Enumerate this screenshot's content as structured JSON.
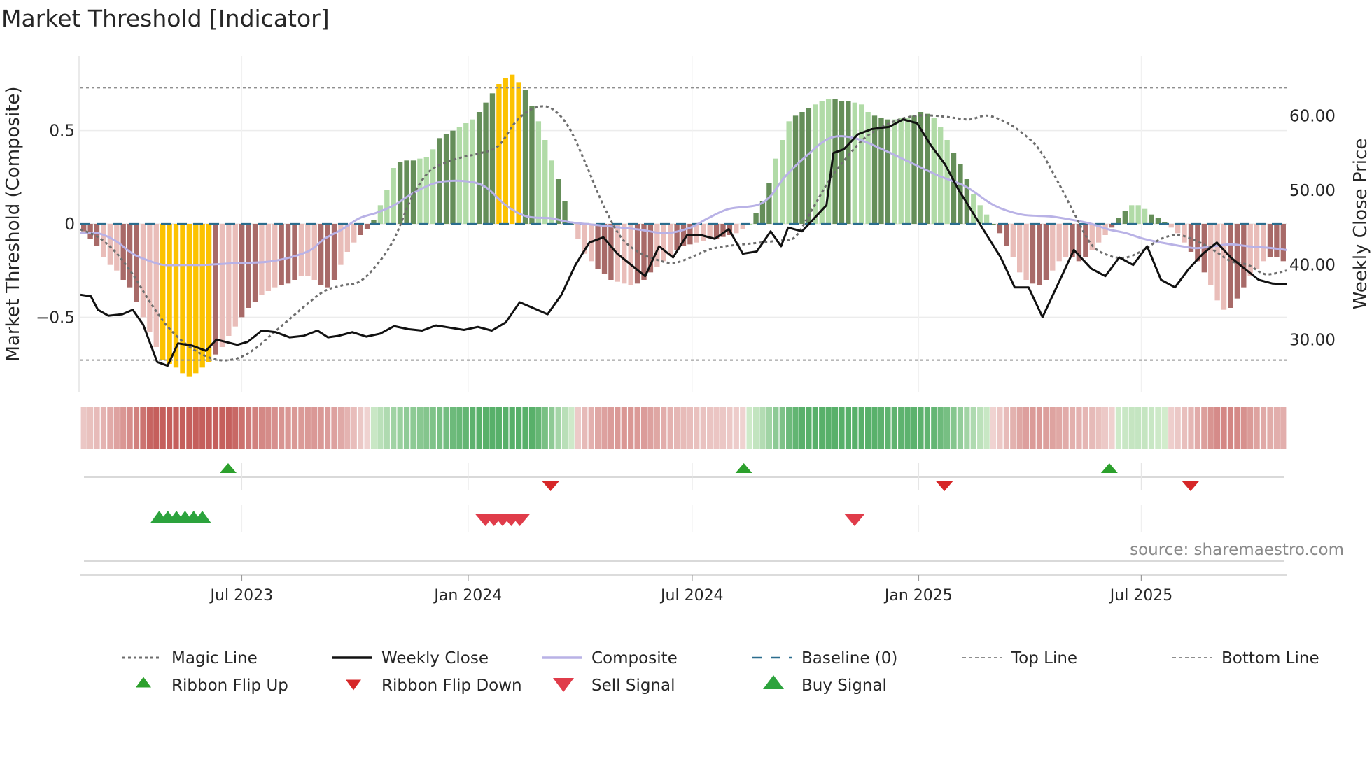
{
  "chart_data": {
    "type": "bar",
    "title": "Market Threshold [Indicator]",
    "ylabel_left": "Market Threshold (Composite)",
    "ylabel_right": "Weekly Close Price",
    "source": "source: sharemaestro.com",
    "left_axis": {
      "ylim": [
        -0.9,
        0.9
      ],
      "ticks": [
        0.5,
        0,
        -0.5
      ],
      "tick_labels": [
        "0.5",
        "0",
        "−0.5"
      ]
    },
    "right_axis": {
      "ylim": [
        23,
        68
      ],
      "ticks": [
        60,
        50,
        40,
        30
      ],
      "tick_labels": [
        "60.00",
        "50.00",
        "40.00",
        "30.00"
      ]
    },
    "x_axis": {
      "start": "2023-02-20",
      "end": "2025-10-27",
      "ticks": [
        {
          "date": "2023-07-01",
          "label": "Jul 2023"
        },
        {
          "date": "2024-01-01",
          "label": "Jan 2024"
        },
        {
          "date": "2024-07-01",
          "label": "Jul 2024"
        },
        {
          "date": "2025-01-01",
          "label": "Jan 2025"
        },
        {
          "date": "2025-07-01",
          "label": "Jul 2025"
        }
      ]
    },
    "top_line": 0.73,
    "bottom_line": -0.73,
    "composite_keypoints": [
      [
        0,
        -0.05
      ],
      [
        5,
        -0.05
      ],
      [
        10,
        -0.09
      ],
      [
        15,
        -0.16
      ],
      [
        20,
        -0.2
      ],
      [
        24,
        -0.22
      ],
      [
        30,
        -0.22
      ],
      [
        35,
        -0.22
      ],
      [
        45,
        -0.21
      ],
      [
        55,
        -0.2
      ],
      [
        65,
        -0.15
      ],
      [
        70,
        -0.08
      ],
      [
        75,
        -0.03
      ],
      [
        80,
        0.03
      ],
      [
        85,
        0.06
      ],
      [
        90,
        0.1
      ],
      [
        95,
        0.16
      ],
      [
        102,
        0.22
      ],
      [
        110,
        0.23
      ],
      [
        116,
        0.2
      ],
      [
        122,
        0.1
      ],
      [
        128,
        0.04
      ],
      [
        135,
        0.03
      ],
      [
        140,
        0.01
      ],
      [
        150,
        -0.01
      ],
      [
        160,
        -0.03
      ],
      [
        168,
        -0.05
      ],
      [
        175,
        -0.02
      ],
      [
        180,
        0.03
      ],
      [
        186,
        0.08
      ],
      [
        194,
        0.1
      ],
      [
        198,
        0.15
      ],
      [
        202,
        0.25
      ],
      [
        208,
        0.36
      ],
      [
        215,
        0.46
      ],
      [
        222,
        0.46
      ],
      [
        230,
        0.4
      ],
      [
        238,
        0.33
      ],
      [
        246,
        0.26
      ],
      [
        254,
        0.2
      ],
      [
        262,
        0.1
      ],
      [
        270,
        0.05
      ],
      [
        278,
        0.04
      ],
      [
        285,
        0.02
      ],
      [
        290,
        0.0
      ],
      [
        295,
        -0.03
      ],
      [
        300,
        -0.05
      ],
      [
        305,
        -0.08
      ],
      [
        310,
        -0.1
      ],
      [
        316,
        -0.12
      ],
      [
        320,
        -0.13
      ],
      [
        325,
        -0.12
      ],
      [
        330,
        -0.11
      ],
      [
        335,
        -0.12
      ],
      [
        342,
        -0.13
      ],
      [
        346,
        -0.14
      ]
    ],
    "magic_keypoints": [
      [
        0,
        -0.03
      ],
      [
        5,
        -0.07
      ],
      [
        10,
        -0.15
      ],
      [
        15,
        -0.27
      ],
      [
        20,
        -0.42
      ],
      [
        25,
        -0.55
      ],
      [
        30,
        -0.64
      ],
      [
        35,
        -0.7
      ],
      [
        40,
        -0.73
      ],
      [
        45,
        -0.72
      ],
      [
        50,
        -0.67
      ],
      [
        55,
        -0.59
      ],
      [
        60,
        -0.51
      ],
      [
        65,
        -0.43
      ],
      [
        70,
        -0.36
      ],
      [
        75,
        -0.33
      ],
      [
        80,
        -0.31
      ],
      [
        85,
        -0.22
      ],
      [
        90,
        -0.08
      ],
      [
        95,
        0.14
      ],
      [
        100,
        0.28
      ],
      [
        105,
        0.33
      ],
      [
        110,
        0.36
      ],
      [
        115,
        0.38
      ],
      [
        120,
        0.42
      ],
      [
        125,
        0.55
      ],
      [
        130,
        0.62
      ],
      [
        135,
        0.62
      ],
      [
        140,
        0.52
      ],
      [
        145,
        0.32
      ],
      [
        150,
        0.1
      ],
      [
        155,
        -0.07
      ],
      [
        160,
        -0.15
      ],
      [
        165,
        -0.19
      ],
      [
        170,
        -0.21
      ],
      [
        175,
        -0.18
      ],
      [
        180,
        -0.14
      ],
      [
        185,
        -0.12
      ],
      [
        190,
        -0.11
      ],
      [
        195,
        -0.1
      ],
      [
        200,
        -0.09
      ],
      [
        205,
        -0.07
      ],
      [
        210,
        0.08
      ],
      [
        215,
        0.24
      ],
      [
        220,
        0.36
      ],
      [
        225,
        0.46
      ],
      [
        230,
        0.52
      ],
      [
        235,
        0.56
      ],
      [
        240,
        0.58
      ],
      [
        245,
        0.58
      ],
      [
        250,
        0.57
      ],
      [
        255,
        0.56
      ],
      [
        260,
        0.58
      ],
      [
        265,
        0.55
      ],
      [
        270,
        0.49
      ],
      [
        275,
        0.4
      ],
      [
        280,
        0.24
      ],
      [
        285,
        0.06
      ],
      [
        290,
        -0.11
      ],
      [
        295,
        -0.17
      ],
      [
        300,
        -0.18
      ],
      [
        305,
        -0.14
      ],
      [
        310,
        -0.08
      ],
      [
        315,
        -0.06
      ],
      [
        320,
        -0.09
      ],
      [
        325,
        -0.14
      ],
      [
        330,
        -0.2
      ],
      [
        335,
        -0.22
      ],
      [
        340,
        -0.27
      ],
      [
        346,
        -0.25
      ]
    ],
    "weekly_close_keypoints": [
      [
        0,
        36
      ],
      [
        3,
        35.8
      ],
      [
        5,
        34
      ],
      [
        8,
        33.2
      ],
      [
        12,
        33.4
      ],
      [
        15,
        34
      ],
      [
        18,
        32
      ],
      [
        22,
        27
      ],
      [
        25,
        26.5
      ],
      [
        28,
        29.5
      ],
      [
        32,
        29.2
      ],
      [
        36,
        28.5
      ],
      [
        39,
        30
      ],
      [
        45,
        29.3
      ],
      [
        48,
        29.7
      ],
      [
        52,
        31.2
      ],
      [
        56,
        31
      ],
      [
        60,
        30.3
      ],
      [
        64,
        30.5
      ],
      [
        68,
        31.2
      ],
      [
        71,
        30.3
      ],
      [
        74,
        30.5
      ],
      [
        78,
        31
      ],
      [
        82,
        30.4
      ],
      [
        86,
        30.8
      ],
      [
        90,
        31.8
      ],
      [
        94,
        31.4
      ],
      [
        98,
        31.2
      ],
      [
        102,
        31.9
      ],
      [
        106,
        31.6
      ],
      [
        110,
        31.3
      ],
      [
        114,
        31.7
      ],
      [
        118,
        31.2
      ],
      [
        122,
        32.3
      ],
      [
        126,
        35
      ],
      [
        130,
        34.2
      ],
      [
        134,
        33.4
      ],
      [
        138,
        36
      ],
      [
        142,
        40
      ],
      [
        146,
        43
      ],
      [
        150,
        43.7
      ],
      [
        154,
        41.5
      ],
      [
        158,
        40
      ],
      [
        162,
        38.5
      ],
      [
        166,
        42.5
      ],
      [
        170,
        41
      ],
      [
        174,
        44
      ],
      [
        178,
        44
      ],
      [
        182,
        43.5
      ],
      [
        186,
        44.8
      ],
      [
        190,
        41.5
      ],
      [
        194,
        41.8
      ],
      [
        198,
        44.5
      ],
      [
        201,
        42.5
      ],
      [
        203,
        45
      ],
      [
        207,
        44.5
      ],
      [
        210,
        46
      ],
      [
        214,
        48
      ],
      [
        216,
        55
      ],
      [
        219,
        55.5
      ],
      [
        223,
        57.5
      ],
      [
        227,
        58.2
      ],
      [
        232,
        58.5
      ],
      [
        236,
        59.5
      ],
      [
        240,
        59
      ],
      [
        244,
        56
      ],
      [
        248,
        53.5
      ],
      [
        252,
        50
      ],
      [
        256,
        47
      ],
      [
        260,
        44
      ],
      [
        264,
        41
      ],
      [
        268,
        37
      ],
      [
        272,
        37
      ],
      [
        276,
        33
      ],
      [
        281,
        38
      ],
      [
        285,
        42
      ],
      [
        290,
        39.5
      ],
      [
        294,
        38.5
      ],
      [
        298,
        41
      ],
      [
        302,
        40
      ],
      [
        306,
        42.5
      ],
      [
        310,
        38
      ],
      [
        314,
        37
      ],
      [
        318,
        39.5
      ],
      [
        322,
        41.5
      ],
      [
        326,
        43
      ],
      [
        330,
        41
      ],
      [
        334,
        39.5
      ],
      [
        338,
        38
      ],
      [
        342,
        37.5
      ],
      [
        346,
        37.4
      ]
    ],
    "bar_heights_by_category": [
      -0.04,
      -0.08,
      -0.12,
      -0.18,
      -0.22,
      -0.25,
      -0.3,
      -0.34,
      -0.42,
      -0.5,
      -0.58,
      -0.66,
      -0.73,
      -0.75,
      -0.77,
      -0.8,
      -0.82,
      -0.8,
      -0.77,
      -0.74,
      -0.7,
      -0.66,
      -0.6,
      -0.55,
      -0.5,
      -0.45,
      -0.42,
      -0.38,
      -0.36,
      -0.34,
      -0.33,
      -0.32,
      -0.3,
      -0.28,
      -0.28,
      -0.3,
      -0.33,
      -0.34,
      -0.3,
      -0.22,
      -0.15,
      -0.1,
      -0.06,
      -0.03,
      0.02,
      0.1,
      0.18,
      0.3,
      0.33,
      0.34,
      0.34,
      0.35,
      0.36,
      0.4,
      0.46,
      0.48,
      0.5,
      0.52,
      0.54,
      0.56,
      0.6,
      0.65,
      0.7,
      0.75,
      0.78,
      0.8,
      0.76,
      0.72,
      0.63,
      0.55,
      0.45,
      0.34,
      0.24,
      0.12,
      0.0,
      -0.08,
      -0.16,
      -0.2,
      -0.24,
      -0.27,
      -0.3,
      -0.31,
      -0.32,
      -0.33,
      -0.32,
      -0.3,
      -0.26,
      -0.23,
      -0.2,
      -0.17,
      -0.14,
      -0.12,
      -0.11,
      -0.1,
      -0.09,
      -0.08,
      -0.08,
      -0.07,
      -0.06,
      -0.05,
      -0.03,
      0.0,
      0.06,
      0.12,
      0.22,
      0.35,
      0.45,
      0.55,
      0.58,
      0.6,
      0.62,
      0.64,
      0.66,
      0.67,
      0.67,
      0.66,
      0.66,
      0.65,
      0.64,
      0.6,
      0.58,
      0.57,
      0.56,
      0.56,
      0.57,
      0.57,
      0.58,
      0.6,
      0.59,
      0.57,
      0.52,
      0.45,
      0.38,
      0.32,
      0.24,
      0.16,
      0.1,
      0.05,
      0.0,
      -0.05,
      -0.12,
      -0.18,
      -0.26,
      -0.3,
      -0.32,
      -0.33,
      -0.3,
      -0.25,
      -0.2,
      -0.18,
      -0.18,
      -0.2,
      -0.18,
      -0.14,
      -0.1,
      -0.06,
      -0.02,
      0.03,
      0.07,
      0.1,
      0.1,
      0.08,
      0.05,
      0.03,
      0.01,
      -0.02,
      -0.05,
      -0.1,
      -0.15,
      -0.2,
      -0.26,
      -0.33,
      -0.41,
      -0.46,
      -0.45,
      -0.4,
      -0.34,
      -0.28,
      -0.24,
      -0.2,
      -0.18,
      -0.18,
      -0.2
    ]
  },
  "legend": [
    {
      "label": "Magic Line",
      "symbol": "dotted-line-icon",
      "color": "#6e6e6e"
    },
    {
      "label": "Weekly Close",
      "symbol": "solid-line-icon",
      "color": "#111111"
    },
    {
      "label": "Composite",
      "symbol": "solid-line-icon",
      "color": "#b9b2e6"
    },
    {
      "label": "Baseline (0)",
      "symbol": "dashed-line-icon",
      "color": "#2b6d8e"
    },
    {
      "label": "Top Line",
      "symbol": "dashed-line-icon",
      "color": "#8f8f8f"
    },
    {
      "label": "Bottom Line",
      "symbol": "dashed-line-icon",
      "color": "#8f8f8f"
    },
    {
      "label": "Ribbon Flip Up",
      "symbol": "triangle-up-icon",
      "color": "#2ca02c"
    },
    {
      "label": "Ribbon Flip Down",
      "symbol": "triangle-down-icon",
      "color": "#d62728"
    },
    {
      "label": "Sell Signal",
      "symbol": "triangle-down-icon",
      "color": "#e03c4a"
    },
    {
      "label": "Buy Signal",
      "symbol": "triangle-up-icon",
      "color": "#2ca33d"
    }
  ],
  "flip_up_dates": [
    "2023-06-20",
    "2024-08-12",
    "2025-06-05"
  ],
  "flip_down_dates": [
    "2024-03-08",
    "2025-01-22",
    "2025-08-10"
  ],
  "buy_signal_dates": [
    "2023-04-25",
    "2023-05-02",
    "2023-05-09",
    "2023-05-16",
    "2023-05-23",
    "2023-05-30"
  ],
  "sell_signal_dates": [
    "2024-01-15",
    "2024-01-22",
    "2024-01-29",
    "2024-02-05",
    "2024-02-12",
    "2024-11-10"
  ],
  "colors": {
    "bar_neg_strong": "#a86a68",
    "bar_neg_weak": "#e9bdb9",
    "bar_pos_strong": "#658e59",
    "bar_pos_weak": "#b1dba7",
    "bar_extreme": "#fcc200",
    "ribbon_red_strong": "#c55f5c",
    "ribbon_red_weak": "#f0d4d2",
    "ribbon_green_strong": "#58b06a",
    "ribbon_green_weak": "#d3eccd"
  }
}
